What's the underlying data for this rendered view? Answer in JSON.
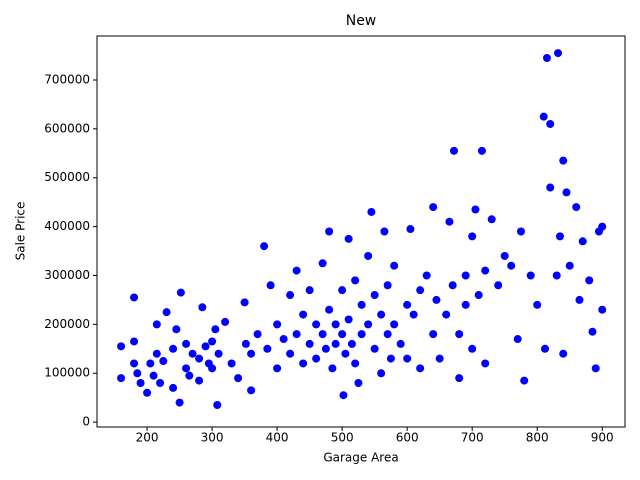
{
  "chart_data": {
    "type": "scatter",
    "title": "New",
    "x_label": "Garage Area",
    "y_label": "Sale Price",
    "color": "#0000ff",
    "xlim": [
      123,
      935
    ],
    "ylim": [
      -10000,
      790000
    ],
    "xticks": [
      200,
      300,
      400,
      500,
      600,
      700,
      800,
      900
    ],
    "yticks": [
      0,
      100000,
      200000,
      300000,
      400000,
      500000,
      600000,
      700000
    ],
    "x": [
      160,
      160,
      180,
      180,
      180,
      185,
      190,
      200,
      205,
      210,
      215,
      215,
      220,
      225,
      230,
      240,
      240,
      245,
      250,
      252,
      260,
      260,
      265,
      270,
      280,
      280,
      285,
      290,
      295,
      300,
      300,
      305,
      308,
      310,
      320,
      330,
      340,
      350,
      352,
      360,
      360,
      370,
      380,
      385,
      390,
      400,
      400,
      410,
      420,
      420,
      430,
      430,
      440,
      440,
      450,
      450,
      460,
      460,
      470,
      470,
      475,
      480,
      480,
      485,
      490,
      490,
      500,
      500,
      502,
      505,
      510,
      510,
      515,
      520,
      520,
      525,
      530,
      530,
      540,
      540,
      545,
      550,
      550,
      560,
      560,
      565,
      570,
      570,
      575,
      580,
      580,
      590,
      600,
      600,
      605,
      610,
      620,
      620,
      630,
      640,
      640,
      645,
      650,
      660,
      665,
      670,
      672,
      680,
      680,
      690,
      690,
      700,
      700,
      705,
      710,
      715,
      720,
      720,
      730,
      740,
      750,
      760,
      770,
      775,
      780,
      790,
      800,
      810,
      812,
      815,
      820,
      830,
      832,
      835,
      840,
      840,
      845,
      850,
      860,
      865,
      870,
      880,
      885,
      890,
      895,
      900,
      900,
      820
    ],
    "values": [
      90000,
      155000,
      255000,
      120000,
      165000,
      100000,
      80000,
      60000,
      120000,
      95000,
      200000,
      140000,
      80000,
      125000,
      225000,
      150000,
      70000,
      190000,
      40000,
      265000,
      160000,
      110000,
      95000,
      140000,
      130000,
      85000,
      235000,
      155000,
      120000,
      110000,
      165000,
      190000,
      35000,
      140000,
      205000,
      120000,
      90000,
      245000,
      160000,
      65000,
      140000,
      180000,
      360000,
      150000,
      280000,
      200000,
      110000,
      170000,
      260000,
      140000,
      310000,
      180000,
      220000,
      120000,
      160000,
      270000,
      200000,
      130000,
      180000,
      325000,
      150000,
      390000,
      230000,
      110000,
      200000,
      160000,
      270000,
      180000,
      55000,
      140000,
      375000,
      210000,
      160000,
      290000,
      120000,
      80000,
      240000,
      180000,
      340000,
      200000,
      430000,
      150000,
      260000,
      100000,
      220000,
      390000,
      180000,
      280000,
      130000,
      320000,
      200000,
      160000,
      240000,
      130000,
      395000,
      220000,
      270000,
      110000,
      300000,
      440000,
      180000,
      250000,
      130000,
      220000,
      410000,
      280000,
      555000,
      180000,
      90000,
      300000,
      240000,
      380000,
      150000,
      435000,
      260000,
      555000,
      310000,
      120000,
      415000,
      280000,
      340000,
      320000,
      170000,
      390000,
      85000,
      300000,
      240000,
      625000,
      150000,
      745000,
      610000,
      300000,
      755000,
      380000,
      535000,
      140000,
      470000,
      320000,
      440000,
      250000,
      370000,
      290000,
      185000,
      110000,
      390000,
      230000,
      400000,
      480000
    ]
  }
}
